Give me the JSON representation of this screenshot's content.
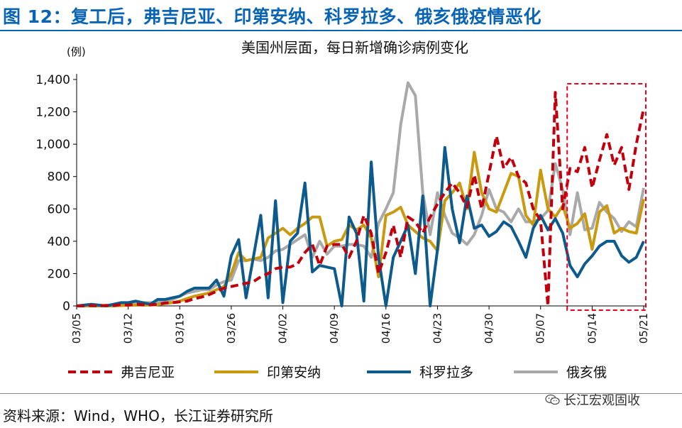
{
  "header": {
    "title": "图 12：复工后，弗吉尼亚、印第安纳、科罗拉多、俄亥俄疫情恶化"
  },
  "footer": {
    "source": "资料来源：Wind，WHO，长江证券研究所",
    "watermark": "长江宏观固收"
  },
  "colors": {
    "brand": "#0a64b4",
    "frame": "#e8001c"
  },
  "chart_data": {
    "type": "line",
    "title": "美国州层面，每日新增确诊病例变化",
    "ylabel": "(例)",
    "xlabel": "",
    "ylim": [
      0,
      1400
    ],
    "yticks": [
      0,
      200,
      400,
      600,
      800,
      1000,
      1200,
      1400
    ],
    "ytick_labels": [
      "0",
      "200",
      "400",
      "600",
      "800",
      "1,000",
      "1,200",
      "1,400"
    ],
    "xtick_labels": [
      "03/05",
      "03/12",
      "03/19",
      "03/26",
      "04/02",
      "04/09",
      "04/16",
      "04/23",
      "04/30",
      "05/07",
      "05/14",
      "05/21"
    ],
    "xtick_day_index": [
      0,
      7,
      14,
      21,
      28,
      35,
      42,
      49,
      56,
      63,
      70,
      77
    ],
    "x": [
      "03/05",
      "03/06",
      "03/07",
      "03/08",
      "03/09",
      "03/10",
      "03/11",
      "03/12",
      "03/13",
      "03/14",
      "03/15",
      "03/16",
      "03/17",
      "03/18",
      "03/19",
      "03/20",
      "03/21",
      "03/22",
      "03/23",
      "03/24",
      "03/25",
      "03/26",
      "03/27",
      "03/28",
      "03/29",
      "03/30",
      "03/31",
      "04/01",
      "04/02",
      "04/03",
      "04/04",
      "04/05",
      "04/06",
      "04/07",
      "04/08",
      "04/09",
      "04/10",
      "04/11",
      "04/12",
      "04/13",
      "04/14",
      "04/15",
      "04/16",
      "04/17",
      "04/18",
      "04/19",
      "04/20",
      "04/21",
      "04/22",
      "04/23",
      "04/24",
      "04/25",
      "04/26",
      "04/27",
      "04/28",
      "04/29",
      "04/30",
      "05/01",
      "05/02",
      "05/03",
      "05/04",
      "05/05",
      "05/06",
      "05/07",
      "05/08",
      "05/09",
      "05/10",
      "05/11",
      "05/12",
      "05/13",
      "05/14",
      "05/15",
      "05/16",
      "05/17",
      "05/18",
      "05/19",
      "05/20",
      "05/21"
    ],
    "series": [
      {
        "name": "弗吉尼亚",
        "color": "#c0000c",
        "style": "dashed",
        "values": [
          0,
          0,
          2,
          0,
          3,
          2,
          8,
          5,
          10,
          8,
          6,
          10,
          18,
          20,
          25,
          30,
          45,
          55,
          70,
          90,
          110,
          120,
          130,
          140,
          150,
          180,
          200,
          230,
          240,
          240,
          260,
          330,
          380,
          250,
          370,
          380,
          380,
          300,
          400,
          560,
          450,
          200,
          330,
          500,
          300,
          550,
          520,
          450,
          550,
          630,
          700,
          760,
          700,
          610,
          810,
          600,
          820,
          1050,
          850,
          920,
          800,
          760,
          600,
          530,
          0,
          1320,
          600,
          850,
          830,
          980,
          730,
          900,
          1060,
          870,
          980,
          720,
          1000,
          1220
        ]
      },
      {
        "name": "印第安纳",
        "color": "#c99a10",
        "style": "solid",
        "values": [
          0,
          0,
          0,
          0,
          0,
          0,
          2,
          4,
          5,
          4,
          6,
          8,
          15,
          20,
          30,
          45,
          60,
          70,
          80,
          100,
          120,
          200,
          330,
          280,
          290,
          300,
          420,
          450,
          480,
          440,
          480,
          510,
          550,
          550,
          370,
          400,
          410,
          500,
          470,
          500,
          420,
          180,
          560,
          580,
          610,
          500,
          460,
          420,
          400,
          340,
          650,
          700,
          760,
          600,
          950,
          700,
          600,
          580,
          700,
          820,
          800,
          560,
          500,
          840,
          600,
          550,
          620,
          480,
          510,
          570,
          350,
          580,
          620,
          450,
          480,
          460,
          450,
          660
        ]
      },
      {
        "name": "科罗拉多",
        "color": "#0d5a8c",
        "style": "solid",
        "values": [
          0,
          5,
          10,
          5,
          0,
          10,
          20,
          20,
          30,
          20,
          10,
          40,
          40,
          50,
          60,
          90,
          110,
          110,
          110,
          160,
          60,
          310,
          410,
          50,
          300,
          560,
          50,
          650,
          20,
          400,
          450,
          760,
          210,
          250,
          240,
          230,
          0,
          550,
          450,
          30,
          890,
          300,
          0,
          300,
          400,
          500,
          200,
          680,
          0,
          350,
          980,
          600,
          390,
          680,
          480,
          500,
          430,
          460,
          520,
          490,
          400,
          300,
          480,
          560,
          470,
          540,
          450,
          250,
          180,
          260,
          310,
          370,
          400,
          400,
          310,
          270,
          300,
          400
        ]
      },
      {
        "name": "俄亥俄",
        "color": "#a9a9a9",
        "style": "solid",
        "values": [
          0,
          0,
          0,
          0,
          0,
          5,
          10,
          10,
          15,
          20,
          20,
          20,
          30,
          40,
          60,
          80,
          90,
          100,
          100,
          130,
          150,
          160,
          280,
          280,
          290,
          280,
          300,
          340,
          350,
          380,
          410,
          440,
          300,
          400,
          320,
          370,
          370,
          380,
          380,
          370,
          300,
          510,
          600,
          700,
          1120,
          1380,
          1300,
          700,
          440,
          700,
          560,
          450,
          420,
          380,
          440,
          560,
          720,
          600,
          580,
          520,
          600,
          520,
          520,
          540,
          590,
          880,
          720,
          440,
          700,
          470,
          480,
          640,
          580,
          540,
          460,
          520,
          490,
          730
        ]
      }
    ],
    "legend_position": "bottom",
    "grid": false,
    "highlight_box": {
      "from": "05/11",
      "to": "05/21",
      "style": "dashed",
      "color": "#e8001c"
    }
  }
}
